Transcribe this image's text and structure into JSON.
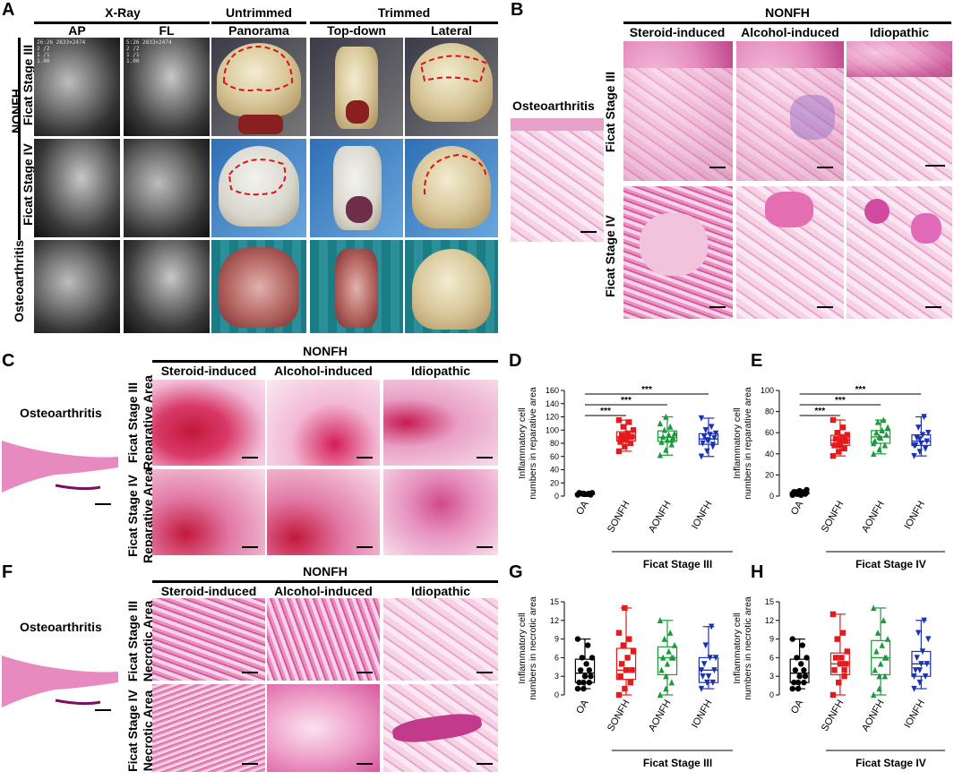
{
  "panels": {
    "A": {
      "label": "A",
      "xray_header": "X-Ray",
      "untrimmed_header": "Untrimmed",
      "trimmed_header": "Trimmed",
      "cols": [
        "AP",
        "FL",
        "Panorama",
        "Top-down",
        "Lateral"
      ],
      "group": "NONFH",
      "rows": [
        "Ficat Stage III",
        "Ficat Stage IV",
        "Osteoarthritis"
      ],
      "xray_text_1": "26:26 2833×2474\n2 /2\n1 /1\n1.00",
      "xray_text_2": "5:26 2833×2474\n2 /2\n1 /1\n1.00"
    },
    "B": {
      "label": "B",
      "group": "NONFH",
      "cols": [
        "Steroid-induced",
        "Alcohol-induced",
        "Idiopathic"
      ],
      "rows": [
        "Ficat Stage III",
        "Ficat Stage IV"
      ],
      "oa_label": "Osteoarthritis"
    },
    "C": {
      "label": "C",
      "group": "NONFH",
      "cols": [
        "Steroid-induced",
        "Alcohol-induced",
        "Idiopathic"
      ],
      "rows": [
        "Ficat Stage III",
        "Ficat Stage IV"
      ],
      "row_sub": "Reparative Area",
      "oa_label": "Osteoarthritis"
    },
    "F": {
      "label": "F",
      "group": "NONFH",
      "cols": [
        "Steroid-induced",
        "Alcohol-induced",
        "Idiopathic"
      ],
      "rows": [
        "Ficat Stage III",
        "Ficat Stage IV"
      ],
      "row_sub": "Necrotic Area",
      "oa_label": "Osteoarthritis"
    }
  },
  "chart_data": [
    {
      "panel": "D",
      "type": "box",
      "ylabel": "Inflammatory cell numbers in reparative area",
      "ylim": [
        0,
        160
      ],
      "yticks": [
        0,
        20,
        40,
        60,
        80,
        100,
        120,
        140,
        160
      ],
      "categories": [
        "OA",
        "SONFH",
        "AONFH",
        "IONFH"
      ],
      "group_label": "Ficat Stage III",
      "significance": [
        "***",
        "***",
        "***"
      ],
      "series": [
        {
          "values": [
            2,
            3,
            4,
            5,
            3,
            2,
            4,
            3,
            5,
            4,
            3,
            2,
            4
          ],
          "color": "#000000",
          "marker": "circle"
        },
        {
          "values": [
            68,
            75,
            80,
            85,
            88,
            90,
            92,
            95,
            100,
            105,
            112,
            115,
            85,
            90,
            82
          ],
          "color": "#e41a1c",
          "marker": "square"
        },
        {
          "values": [
            62,
            70,
            78,
            82,
            85,
            88,
            90,
            93,
            95,
            100,
            105,
            110,
            120,
            85
          ],
          "color": "#1a9a3a",
          "marker": "triangle"
        },
        {
          "values": [
            60,
            68,
            75,
            80,
            84,
            88,
            90,
            93,
            95,
            100,
            105,
            118,
            85,
            78
          ],
          "color": "#1a33b0",
          "marker": "invtriangle"
        }
      ]
    },
    {
      "panel": "E",
      "type": "box",
      "ylabel": "Inflammatory cell numbers in reparative area",
      "ylim": [
        0,
        100
      ],
      "yticks": [
        0,
        20,
        40,
        60,
        80,
        100
      ],
      "categories": [
        "OA",
        "SONFH",
        "AONFH",
        "IONFH"
      ],
      "group_label": "Ficat Stage IV",
      "significance": [
        "***",
        "***",
        "***"
      ],
      "series": [
        {
          "values": [
            1,
            2,
            3,
            4,
            5,
            2,
            3,
            1,
            6,
            2,
            3
          ],
          "color": "#000000",
          "marker": "circle"
        },
        {
          "values": [
            38,
            42,
            45,
            48,
            50,
            52,
            54,
            56,
            58,
            60,
            65,
            72,
            48,
            55
          ],
          "color": "#e41a1c",
          "marker": "square"
        },
        {
          "values": [
            40,
            44,
            48,
            52,
            55,
            58,
            60,
            62,
            65,
            70,
            72,
            50,
            56
          ],
          "color": "#1a9a3a",
          "marker": "triangle"
        },
        {
          "values": [
            38,
            42,
            45,
            48,
            50,
            52,
            55,
            58,
            60,
            65,
            75,
            48,
            54
          ],
          "color": "#1a33b0",
          "marker": "invtriangle"
        }
      ]
    },
    {
      "panel": "G",
      "type": "box",
      "ylabel": "Inflammatory cell numbers in necrotic area",
      "ylim": [
        0,
        15
      ],
      "yticks": [
        0,
        3,
        6,
        9,
        12,
        15
      ],
      "categories": [
        "OA",
        "SONFH",
        "AONFH",
        "IONFH"
      ],
      "group_label": "Ficat Stage III",
      "series": [
        {
          "values": [
            1,
            1,
            2,
            2,
            3,
            3,
            4,
            5,
            6,
            6,
            8,
            9,
            2,
            4
          ],
          "color": "#000000",
          "marker": "circle"
        },
        {
          "values": [
            0,
            1,
            2,
            3,
            4,
            4,
            5,
            6,
            7,
            8,
            9,
            10,
            14,
            2,
            3
          ],
          "color": "#e41a1c",
          "marker": "square"
        },
        {
          "values": [
            0,
            1,
            2,
            4,
            5,
            6,
            6,
            7,
            8,
            9,
            10,
            12,
            3,
            6
          ],
          "color": "#1a9a3a",
          "marker": "triangle"
        },
        {
          "values": [
            1,
            2,
            2,
            3,
            3,
            4,
            5,
            6,
            6,
            8,
            11,
            4,
            2
          ],
          "color": "#1a33b0",
          "marker": "invtriangle"
        }
      ]
    },
    {
      "panel": "H",
      "type": "box",
      "ylabel": "Inflammatory cell numbers in necrotic area",
      "ylim": [
        0,
        15
      ],
      "yticks": [
        0,
        3,
        6,
        9,
        12,
        15
      ],
      "categories": [
        "OA",
        "SONFH",
        "AONFH",
        "IONFH"
      ],
      "group_label": "Ficat Stage IV",
      "series": [
        {
          "values": [
            1,
            1,
            2,
            2,
            3,
            3,
            4,
            5,
            6,
            6,
            8,
            9,
            2,
            4
          ],
          "color": "#000000",
          "marker": "circle"
        },
        {
          "values": [
            0,
            2,
            3,
            4,
            5,
            5,
            6,
            6,
            7,
            9,
            10,
            13,
            2,
            4
          ],
          "color": "#e41a1c",
          "marker": "square"
        },
        {
          "values": [
            0,
            1,
            3,
            4,
            5,
            6,
            7,
            8,
            9,
            10,
            12,
            14,
            3,
            6
          ],
          "color": "#1a9a3a",
          "marker": "triangle"
        },
        {
          "values": [
            1,
            2,
            3,
            4,
            5,
            5,
            6,
            7,
            9,
            10,
            12,
            3,
            4
          ],
          "color": "#1a33b0",
          "marker": "invtriangle"
        }
      ]
    }
  ]
}
